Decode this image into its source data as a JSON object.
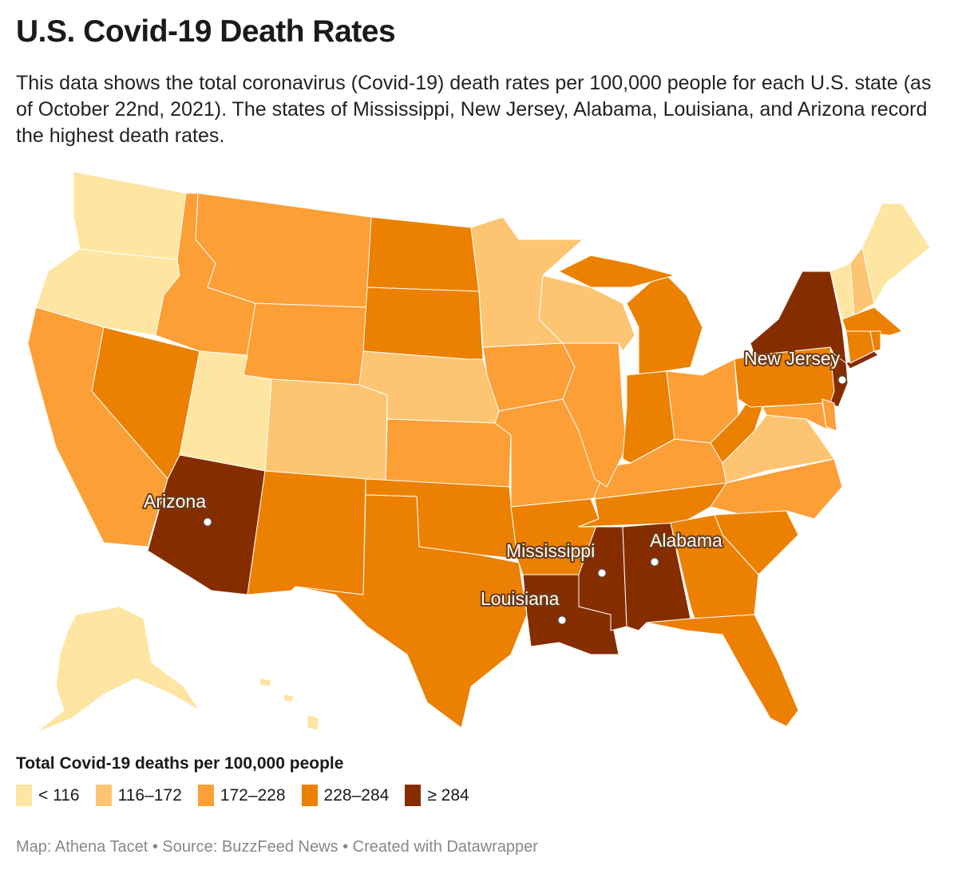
{
  "title": "U.S. Covid-19 Death Rates",
  "description": "This data shows the total coronavirus (Covid-19) death rates per 100,000 people for each U.S. state (as of October 22nd, 2021). The states of Mississippi, New Jersey, Alabama, Louisiana, and Arizona record the highest death rates.",
  "legend": {
    "title": "Total Covid-19 deaths per 100,000 people",
    "bins": [
      {
        "label": "< 116",
        "color": "#fee5a1"
      },
      {
        "label": "116–172",
        "color": "#fdc571"
      },
      {
        "label": "172–228",
        "color": "#fb9f36"
      },
      {
        "label": "228–284",
        "color": "#ec8000"
      },
      {
        "label": "≥ 284",
        "color": "#862d00"
      }
    ]
  },
  "annotations": [
    "Arizona",
    "Mississippi",
    "Alabama",
    "Louisiana",
    "New Jersey"
  ],
  "footer": "Map: Athena Tacet • Source: BuzzFeed News • Created with Datawrapper",
  "chart_data": {
    "type": "choropleth",
    "region_bins": {
      "WA": 0,
      "OR": 0,
      "UT": 0,
      "VT": 0,
      "ME": 0,
      "AK": 0,
      "HI": 0,
      "CO": 1,
      "NE": 1,
      "MN": 1,
      "WI": 1,
      "VA": 1,
      "NH": 1,
      "CA": 2,
      "ID": 2,
      "MT": 2,
      "WY": 2,
      "KS": 2,
      "IA": 2,
      "MO": 2,
      "IL": 2,
      "KY": 2,
      "OH": 2,
      "NC": 2,
      "MD": 2,
      "DE": 2,
      "NV": 3,
      "NM": 3,
      "ND": 3,
      "SD": 3,
      "OK": 3,
      "TX": 3,
      "AR": 3,
      "MI": 3,
      "IN": 3,
      "TN": 3,
      "WV": 3,
      "SC": 3,
      "GA": 3,
      "FL": 3,
      "PA": 3,
      "CT": 3,
      "RI": 3,
      "MA": 3,
      "AZ": 4,
      "LA": 4,
      "MS": 4,
      "AL": 4,
      "NY": 4,
      "NJ": 4
    }
  }
}
